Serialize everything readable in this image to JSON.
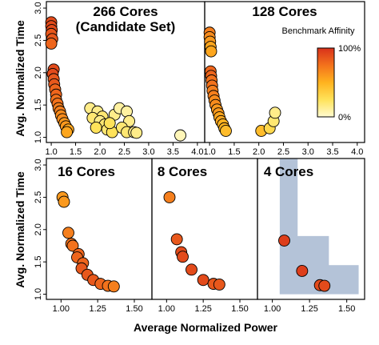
{
  "figure": {
    "ylabel": "Avg. Normalized Time",
    "xlabel": "Average Normalized Power",
    "legend": {
      "title": "Benchmark Affinity",
      "max_label": "100%",
      "min_label": "0%",
      "colors": [
        "#fffbd0",
        "#ffe25a",
        "#ffb31f",
        "#f3721c",
        "#d8311b"
      ]
    },
    "grid_color": "#000000"
  },
  "chart_data": [
    {
      "type": "scatter",
      "title": "266 Cores (Candidate Set)",
      "title_lines": [
        "266 Cores",
        "(Candidate Set)"
      ],
      "xlim": [
        0.9,
        4.15
      ],
      "ylim": [
        0.92,
        3.1
      ],
      "xticks": [
        1.0,
        1.5,
        2.0,
        2.5,
        3.0,
        3.5,
        4.0
      ],
      "yticks": [
        1.0,
        1.5,
        2.0,
        2.5,
        3.0
      ],
      "points": [
        {
          "x": 1.0,
          "y": 2.78,
          "a": 0.9
        },
        {
          "x": 1.0,
          "y": 2.72,
          "a": 0.9
        },
        {
          "x": 1.01,
          "y": 2.66,
          "a": 0.9
        },
        {
          "x": 1.0,
          "y": 2.6,
          "a": 0.85
        },
        {
          "x": 1.02,
          "y": 2.52,
          "a": 0.85
        },
        {
          "x": 1.0,
          "y": 2.45,
          "a": 0.8
        },
        {
          "x": 1.05,
          "y": 2.05,
          "a": 0.9
        },
        {
          "x": 1.03,
          "y": 1.98,
          "a": 0.9
        },
        {
          "x": 1.05,
          "y": 1.9,
          "a": 0.85
        },
        {
          "x": 1.06,
          "y": 1.82,
          "a": 0.85
        },
        {
          "x": 1.08,
          "y": 1.74,
          "a": 0.8
        },
        {
          "x": 1.1,
          "y": 1.66,
          "a": 0.8
        },
        {
          "x": 1.1,
          "y": 1.58,
          "a": 0.75
        },
        {
          "x": 1.13,
          "y": 1.52,
          "a": 0.75
        },
        {
          "x": 1.15,
          "y": 1.45,
          "a": 0.7
        },
        {
          "x": 1.18,
          "y": 1.4,
          "a": 0.7
        },
        {
          "x": 1.2,
          "y": 1.34,
          "a": 0.65
        },
        {
          "x": 1.23,
          "y": 1.28,
          "a": 0.65
        },
        {
          "x": 1.27,
          "y": 1.22,
          "a": 0.6
        },
        {
          "x": 1.3,
          "y": 1.17,
          "a": 0.6
        },
        {
          "x": 1.35,
          "y": 1.12,
          "a": 0.55
        },
        {
          "x": 1.32,
          "y": 1.08,
          "a": 0.55
        },
        {
          "x": 1.8,
          "y": 1.45,
          "a": 0.15
        },
        {
          "x": 1.95,
          "y": 1.4,
          "a": 0.15
        },
        {
          "x": 2.05,
          "y": 1.32,
          "a": 0.2
        },
        {
          "x": 1.85,
          "y": 1.3,
          "a": 0.2
        },
        {
          "x": 2.0,
          "y": 1.25,
          "a": 0.15
        },
        {
          "x": 2.1,
          "y": 1.2,
          "a": 0.2
        },
        {
          "x": 1.92,
          "y": 1.15,
          "a": 0.25
        },
        {
          "x": 2.15,
          "y": 1.12,
          "a": 0.2
        },
        {
          "x": 2.25,
          "y": 1.08,
          "a": 0.25
        },
        {
          "x": 2.3,
          "y": 1.35,
          "a": 0.15
        },
        {
          "x": 2.4,
          "y": 1.45,
          "a": 0.1
        },
        {
          "x": 2.55,
          "y": 1.4,
          "a": 0.1
        },
        {
          "x": 2.6,
          "y": 1.25,
          "a": 0.15
        },
        {
          "x": 2.45,
          "y": 1.15,
          "a": 0.2
        },
        {
          "x": 2.55,
          "y": 1.08,
          "a": 0.2
        },
        {
          "x": 2.7,
          "y": 1.08,
          "a": 0.15
        },
        {
          "x": 2.75,
          "y": 1.07,
          "a": 0.15
        },
        {
          "x": 2.2,
          "y": 1.22,
          "a": 0.25
        },
        {
          "x": 3.65,
          "y": 1.03,
          "a": 0.05
        }
      ]
    },
    {
      "type": "scatter",
      "title": "128 Cores",
      "xlim": [
        0.9,
        4.15
      ],
      "ylim": [
        0.92,
        3.1
      ],
      "xticks": [
        1.0,
        1.5,
        2.0,
        2.5,
        3.0,
        3.5,
        4.0
      ],
      "yticks": [
        1.0,
        1.5,
        2.0,
        2.5,
        3.0
      ],
      "points": [
        {
          "x": 1.0,
          "y": 2.62,
          "a": 0.7
        },
        {
          "x": 1.0,
          "y": 2.55,
          "a": 0.65
        },
        {
          "x": 1.01,
          "y": 2.48,
          "a": 0.6
        },
        {
          "x": 1.02,
          "y": 2.4,
          "a": 0.55
        },
        {
          "x": 1.03,
          "y": 2.33,
          "a": 0.55
        },
        {
          "x": 1.02,
          "y": 2.02,
          "a": 0.8
        },
        {
          "x": 1.03,
          "y": 1.95,
          "a": 0.8
        },
        {
          "x": 1.04,
          "y": 1.88,
          "a": 0.75
        },
        {
          "x": 1.05,
          "y": 1.8,
          "a": 0.75
        },
        {
          "x": 1.06,
          "y": 1.72,
          "a": 0.7
        },
        {
          "x": 1.08,
          "y": 1.64,
          "a": 0.7
        },
        {
          "x": 1.1,
          "y": 1.57,
          "a": 0.65
        },
        {
          "x": 1.12,
          "y": 1.5,
          "a": 0.65
        },
        {
          "x": 1.15,
          "y": 1.43,
          "a": 0.6
        },
        {
          "x": 1.18,
          "y": 1.37,
          "a": 0.6
        },
        {
          "x": 1.2,
          "y": 1.31,
          "a": 0.55
        },
        {
          "x": 1.23,
          "y": 1.25,
          "a": 0.55
        },
        {
          "x": 1.27,
          "y": 1.2,
          "a": 0.5
        },
        {
          "x": 1.3,
          "y": 1.14,
          "a": 0.5
        },
        {
          "x": 1.33,
          "y": 1.1,
          "a": 0.45
        },
        {
          "x": 2.05,
          "y": 1.1,
          "a": 0.45
        },
        {
          "x": 2.22,
          "y": 1.14,
          "a": 0.3
        },
        {
          "x": 2.3,
          "y": 1.25,
          "a": 0.2
        },
        {
          "x": 2.33,
          "y": 1.38,
          "a": 0.15
        }
      ]
    },
    {
      "type": "scatter",
      "title": "16 Cores",
      "xlim": [
        0.9,
        1.62
      ],
      "ylim": [
        0.92,
        3.1
      ],
      "xticks": [
        1.0,
        1.25,
        1.5
      ],
      "xticklabels": [
        "1.00",
        "1.25",
        "1.50"
      ],
      "yticks": [
        1.0,
        1.5,
        2.0,
        2.5,
        3.0
      ],
      "points": [
        {
          "x": 1.01,
          "y": 2.5,
          "a": 0.6
        },
        {
          "x": 1.02,
          "y": 2.43,
          "a": 0.6
        },
        {
          "x": 1.05,
          "y": 1.95,
          "a": 0.7
        },
        {
          "x": 1.07,
          "y": 1.78,
          "a": 0.75
        },
        {
          "x": 1.08,
          "y": 1.75,
          "a": 0.75
        },
        {
          "x": 1.12,
          "y": 1.62,
          "a": 0.8
        },
        {
          "x": 1.11,
          "y": 1.57,
          "a": 0.8
        },
        {
          "x": 1.15,
          "y": 1.48,
          "a": 0.8
        },
        {
          "x": 1.14,
          "y": 1.4,
          "a": 0.85
        },
        {
          "x": 1.18,
          "y": 1.3,
          "a": 0.85
        },
        {
          "x": 1.22,
          "y": 1.22,
          "a": 0.85
        },
        {
          "x": 1.27,
          "y": 1.16,
          "a": 0.8
        },
        {
          "x": 1.32,
          "y": 1.13,
          "a": 0.75
        },
        {
          "x": 1.36,
          "y": 1.12,
          "a": 0.7
        }
      ]
    },
    {
      "type": "scatter",
      "title": "8 Cores",
      "xlim": [
        0.9,
        1.62
      ],
      "ylim": [
        0.92,
        3.1
      ],
      "xticks": [
        1.0,
        1.25,
        1.5
      ],
      "xticklabels": [
        "1.00",
        "1.25",
        "1.50"
      ],
      "yticks": [
        1.0,
        1.5,
        2.0,
        2.5,
        3.0
      ],
      "points": [
        {
          "x": 1.02,
          "y": 2.5,
          "a": 0.7
        },
        {
          "x": 1.07,
          "y": 1.85,
          "a": 0.85
        },
        {
          "x": 1.1,
          "y": 1.65,
          "a": 0.9
        },
        {
          "x": 1.11,
          "y": 1.58,
          "a": 0.9
        },
        {
          "x": 1.17,
          "y": 1.38,
          "a": 0.9
        },
        {
          "x": 1.25,
          "y": 1.22,
          "a": 0.9
        },
        {
          "x": 1.32,
          "y": 1.16,
          "a": 0.85
        },
        {
          "x": 1.36,
          "y": 1.15,
          "a": 0.85
        }
      ]
    },
    {
      "type": "scatter",
      "title": "4 Cores",
      "xlim": [
        0.9,
        1.62
      ],
      "ylim": [
        0.92,
        3.1
      ],
      "xticks": [
        1.0,
        1.25,
        1.5
      ],
      "xticklabels": [
        "1.00",
        "1.25",
        "1.50"
      ],
      "yticks": [
        1.0,
        1.5,
        2.0,
        2.5,
        3.0
      ],
      "region_color": "#b4c3d8",
      "region": [
        {
          "x0": 1.05,
          "x1": 1.17,
          "y0": 1.0,
          "y1": 3.1
        },
        {
          "x0": 1.05,
          "x1": 1.38,
          "y0": 1.0,
          "y1": 1.9
        },
        {
          "x0": 1.05,
          "x1": 1.58,
          "y0": 1.0,
          "y1": 1.45
        }
      ],
      "points": [
        {
          "x": 1.08,
          "y": 1.83,
          "a": 0.95
        },
        {
          "x": 1.2,
          "y": 1.36,
          "a": 0.95
        },
        {
          "x": 1.32,
          "y": 1.14,
          "a": 0.9
        },
        {
          "x": 1.35,
          "y": 1.13,
          "a": 0.9
        }
      ]
    }
  ]
}
